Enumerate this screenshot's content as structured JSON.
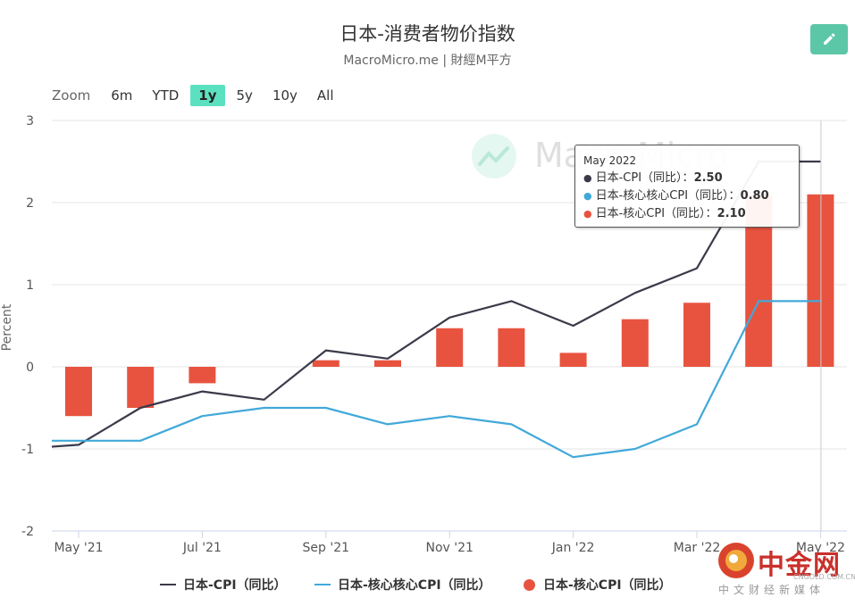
{
  "header": {
    "title": "日本-消费者物价指数",
    "subtitle": "MacroMicro.me | 財經M平方"
  },
  "range_selector": {
    "zoom_label": "Zoom",
    "buttons": [
      "6m",
      "YTD",
      "1y",
      "5y",
      "10y",
      "All"
    ],
    "active": "1y"
  },
  "watermark": {
    "text": "MacroMicro"
  },
  "tooltip": {
    "date": "May 2022",
    "rows": [
      {
        "label": "日本-CPI（同比）：",
        "value": "2.50",
        "color": "#3a3a4a"
      },
      {
        "label": "日本-核心核心CPI（同比）：",
        "value": "0.80",
        "color": "#41a9d9"
      },
      {
        "label": "日本-核心CPI（同比）：",
        "value": "2.10",
        "color": "#e8533f"
      }
    ]
  },
  "legend": [
    {
      "label": "日本-CPI（同比）",
      "symbol": "line",
      "color": "#3a3a4a"
    },
    {
      "label": "日本-核心核心CPI（同比）",
      "symbol": "line",
      "color": "#41a9d9"
    },
    {
      "label": "日本-核心CPI（同比）",
      "symbol": "circle",
      "color": "#e8533f"
    }
  ],
  "brand": {
    "name": "中金网",
    "domain": "CNGOLD.COM.CN",
    "tagline": "中文财经新媒体"
  },
  "chart_data": {
    "type": "bar+line",
    "ylabel": "Percent",
    "ylim": [
      -2,
      3
    ],
    "yticks": [
      -2,
      -1,
      0,
      1,
      2,
      3
    ],
    "x": [
      "2021-05",
      "2021-06",
      "2021-07",
      "2021-08",
      "2021-09",
      "2021-10",
      "2021-11",
      "2021-12",
      "2022-01",
      "2022-02",
      "2022-03",
      "2022-04",
      "2022-05"
    ],
    "xtick_labels": [
      {
        "index": 0,
        "label": "May '21"
      },
      {
        "index": 2,
        "label": "Jul '21"
      },
      {
        "index": 4,
        "label": "Sep '21"
      },
      {
        "index": 6,
        "label": "Nov '21"
      },
      {
        "index": 8,
        "label": "Jan '22"
      },
      {
        "index": 10,
        "label": "Mar '22"
      },
      {
        "index": 12,
        "label": "May '22"
      }
    ],
    "series": [
      {
        "name": "日本-核心CPI（同比）",
        "type": "bar",
        "color": "#e8533f",
        "values": [
          -0.6,
          -0.5,
          -0.2,
          null,
          0.08,
          0.08,
          0.47,
          0.47,
          0.17,
          0.58,
          0.78,
          2.1,
          2.1
        ]
      },
      {
        "name": "日本-CPI（同比）",
        "type": "line",
        "color": "#3a3a4a",
        "values": [
          -0.95,
          -0.5,
          -0.3,
          -0.4,
          0.2,
          0.1,
          0.6,
          0.8,
          0.5,
          0.9,
          1.2,
          2.5,
          2.5
        ]
      },
      {
        "name": "日本-核心核心CPI（同比）",
        "type": "line",
        "color": "#41a9d9",
        "values": [
          -0.9,
          -0.9,
          -0.6,
          -0.5,
          -0.5,
          -0.7,
          -0.6,
          -0.7,
          -1.1,
          -1.0,
          -0.7,
          0.8,
          0.8
        ]
      }
    ],
    "crosshair_index": 12
  }
}
